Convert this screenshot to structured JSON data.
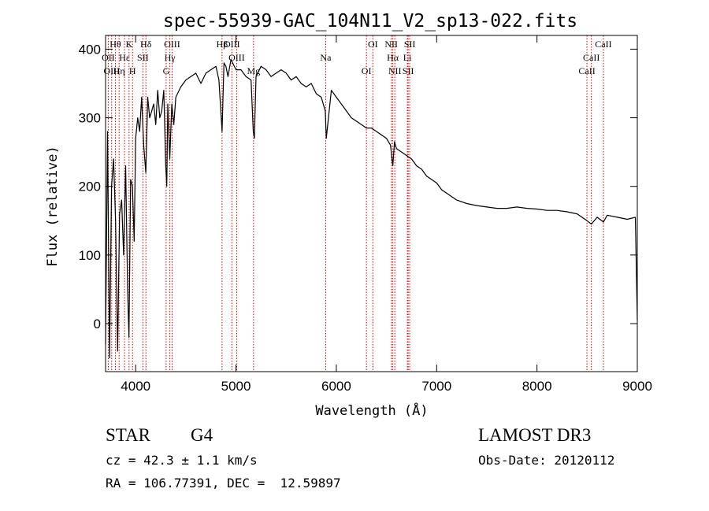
{
  "chart_data": {
    "type": "line",
    "title": "spec-55939-GAC_104N11_V2_sp13-022.fits",
    "xlabel": "Wavelength (Å)",
    "ylabel": "Flux (relative)",
    "xlim": [
      3700,
      9000
    ],
    "ylim": [
      -70,
      420
    ],
    "xticks": [
      4000,
      5000,
      6000,
      7000,
      8000,
      9000
    ],
    "yticks": [
      0,
      100,
      200,
      300,
      400
    ],
    "series": [
      {
        "name": "flux",
        "x": [
          3700,
          3720,
          3740,
          3760,
          3780,
          3800,
          3820,
          3840,
          3860,
          3880,
          3900,
          3920,
          3933,
          3950,
          3968,
          3985,
          4000,
          4020,
          4040,
          4060,
          4080,
          4101,
          4120,
          4140,
          4160,
          4180,
          4200,
          4220,
          4240,
          4260,
          4280,
          4300,
          4310,
          4320,
          4340,
          4360,
          4380,
          4400,
          4450,
          4500,
          4550,
          4600,
          4650,
          4700,
          4750,
          4800,
          4830,
          4861,
          4880,
          4900,
          4920,
          4950,
          5000,
          5050,
          5100,
          5150,
          5172,
          5183,
          5200,
          5250,
          5300,
          5350,
          5400,
          5450,
          5500,
          5550,
          5600,
          5650,
          5700,
          5750,
          5800,
          5850,
          5890,
          5900,
          5950,
          6000,
          6050,
          6100,
          6150,
          6200,
          6250,
          6300,
          6350,
          6400,
          6450,
          6500,
          6540,
          6563,
          6580,
          6600,
          6650,
          6700,
          6750,
          6800,
          6850,
          6900,
          6950,
          7000,
          7050,
          7100,
          7150,
          7200,
          7300,
          7400,
          7500,
          7600,
          7700,
          7800,
          7900,
          8000,
          8100,
          8200,
          8300,
          8400,
          8498,
          8542,
          8600,
          8662,
          8700,
          8800,
          8900,
          8980,
          9000
        ],
        "values": [
          -30,
          280,
          -50,
          200,
          240,
          150,
          -40,
          160,
          180,
          100,
          230,
          50,
          -20,
          210,
          200,
          120,
          270,
          300,
          280,
          330,
          260,
          220,
          330,
          300,
          310,
          320,
          290,
          340,
          300,
          310,
          340,
          230,
          200,
          320,
          240,
          320,
          290,
          330,
          345,
          355,
          360,
          365,
          350,
          365,
          370,
          375,
          355,
          280,
          380,
          375,
          360,
          385,
          370,
          370,
          360,
          355,
          280,
          270,
          360,
          375,
          370,
          360,
          365,
          370,
          365,
          355,
          360,
          350,
          345,
          350,
          335,
          330,
          310,
          270,
          340,
          330,
          320,
          310,
          300,
          295,
          290,
          285,
          285,
          280,
          275,
          270,
          260,
          230,
          265,
          255,
          250,
          245,
          240,
          230,
          225,
          215,
          210,
          205,
          195,
          190,
          185,
          180,
          175,
          172,
          170,
          168,
          168,
          170,
          168,
          167,
          165,
          165,
          163,
          160,
          150,
          145,
          155,
          148,
          158,
          155,
          152,
          155,
          5
        ]
      }
    ],
    "spectral_lines": [
      {
        "label": "Hθ",
        "wavelength": 3798
      },
      {
        "label": "OII",
        "wavelength": 3727
      },
      {
        "label": "OIII",
        "wavelength": 3761
      },
      {
        "label": "K",
        "wavelength": 3934
      },
      {
        "label": "Hε",
        "wavelength": 3889
      },
      {
        "label": "Hη",
        "wavelength": 3835
      },
      {
        "label": "Hδ",
        "wavelength": 4102
      },
      {
        "label": "SII",
        "wavelength": 4072
      },
      {
        "label": "H",
        "wavelength": 3969
      },
      {
        "label": "OIII",
        "wavelength": 4363
      },
      {
        "label": "Hγ",
        "wavelength": 4341
      },
      {
        "label": "G",
        "wavelength": 4304
      },
      {
        "label": "OIII",
        "wavelength": 4959
      },
      {
        "label": "OIII",
        "wavelength": 5007
      },
      {
        "label": "Mg",
        "wavelength": 5175
      },
      {
        "label": "Hβ",
        "wavelength": 4861
      },
      {
        "label": "Na",
        "wavelength": 5894
      },
      {
        "label": "OI",
        "wavelength": 6300
      },
      {
        "label": "OI",
        "wavelength": 6364
      },
      {
        "label": "Hα",
        "wavelength": 6563
      },
      {
        "label": "SII",
        "wavelength": 6716
      },
      {
        "label": "NII",
        "wavelength": 6548
      },
      {
        "label": "Li",
        "wavelength": 6708
      },
      {
        "label": "NII",
        "wavelength": 6583
      },
      {
        "label": "SII",
        "wavelength": 6731
      },
      {
        "label": "CaII",
        "wavelength": 8542
      },
      {
        "label": "CaII",
        "wavelength": 8498
      },
      {
        "label": "CaII",
        "wavelength": 8662
      }
    ]
  },
  "info": {
    "class": "STAR",
    "subclass": "G4",
    "redshift": "cz = 42.3 ± 1.1 km/s",
    "coords": "RA = 106.77391, DEC =  12.59897",
    "survey": "LAMOST DR3",
    "obs_date": "Obs-Date: 20120112"
  },
  "colors": {
    "spectrum": "#000000",
    "lines": "#cc0000"
  }
}
